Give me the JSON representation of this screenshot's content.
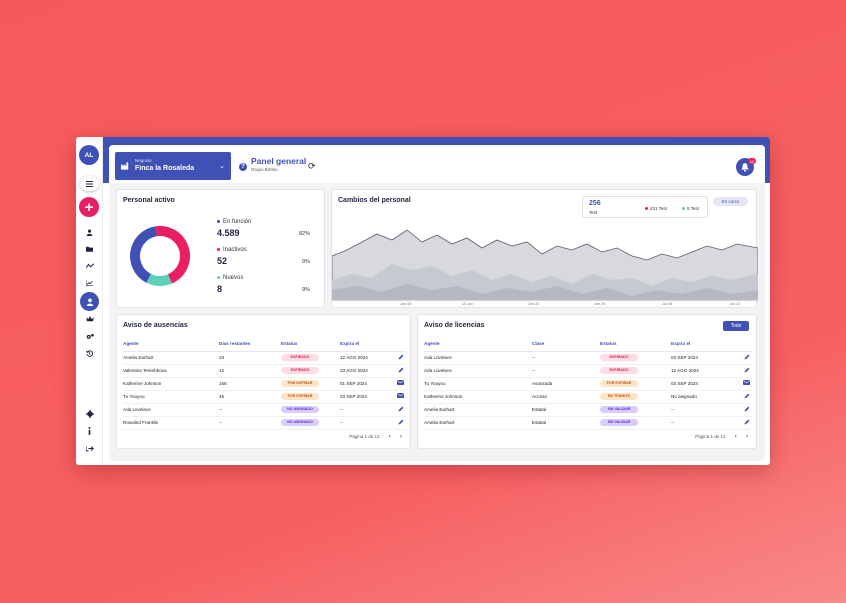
{
  "user": {
    "initials": "AL"
  },
  "header": {
    "negocio_label": "Negocio",
    "negocio_value": "Finca la Rosaleda",
    "panel_title": "Panel general",
    "panel_subtitle": "Grupo Bimbo",
    "notification_count": "12"
  },
  "personal_activo": {
    "title": "Personal activo",
    "items": [
      {
        "label": "En función",
        "value": "4.589",
        "pct": "82%",
        "color": "#3f51b5"
      },
      {
        "label": "Inactivos",
        "value": "52",
        "pct": "9%",
        "color": "#e91e63"
      },
      {
        "label": "Nuevos",
        "value": "8",
        "pct": "9%",
        "color": "#5fd0b8"
      }
    ]
  },
  "cambios": {
    "title": "Cambios del personal",
    "total_value": "256",
    "total_label": "Test",
    "legend1": "231 Test",
    "legend2": "5 Test",
    "legend1_color": "#e91e63",
    "legend2_color": "#5fd0b8",
    "filter_label": "En curso",
    "x_labels": [
      "Jun 08",
      "15 Jun",
      "Jun 22",
      "Jun 29",
      "Jul 06",
      "Jul 13"
    ]
  },
  "ausencias": {
    "title": "Aviso de ausencias",
    "headers": [
      "Agente",
      "Días restantes",
      "Estatus",
      "Expira el"
    ],
    "rows": [
      {
        "agente": "Amelia Earhart",
        "dias": "23",
        "estatus": "EXPIRADO",
        "expira": "12 AGO 2024",
        "action": "edit"
      },
      {
        "agente": "Valentina Tereshkova",
        "dias": "12",
        "estatus": "EXPIRADO",
        "expira": "23 AGO 2024",
        "action": "edit"
      },
      {
        "agente": "Katherine Johnson",
        "dias": "156",
        "estatus": "POR EXPIRAR",
        "expira": "01 SEP 2024",
        "action": "mail"
      },
      {
        "agente": "Tu Youyou",
        "dias": "45",
        "estatus": "POR EXPIRAR",
        "expira": "03 SEP 2024",
        "action": "mail"
      },
      {
        "agente": "Ada Lovelace",
        "dias": "--",
        "estatus": "NO ASIGNADO",
        "expira": "--",
        "action": "edit"
      },
      {
        "agente": "Rosalind Franklin",
        "dias": "--",
        "estatus": "NO ASIGNADO",
        "expira": "--",
        "action": "edit"
      }
    ],
    "pager": "Página 1 de 12"
  },
  "licencias": {
    "title": "Aviso de licencias",
    "todo_label": "Todo",
    "headers": [
      "Agente",
      "Clase",
      "Estatus",
      "Expira el"
    ],
    "rows": [
      {
        "agente": "Ada Lovelace",
        "clase": "--",
        "estatus": "EXPIRADO",
        "expira": "03 SEP 2024",
        "action": "edit"
      },
      {
        "agente": "Ada Lovelace",
        "clase": "--",
        "estatus": "EXPIRADO",
        "expira": "12 AGO 2024",
        "action": "edit"
      },
      {
        "agente": "Tu Youyou",
        "clase": "Avanzada",
        "estatus": "POR EXPIRAR",
        "expira": "03 SEP 2024",
        "action": "mail"
      },
      {
        "agente": "Katherine Johnson",
        "clase": "Acceso",
        "estatus": "EN TRÁMITE",
        "expira": "No asignado",
        "action": "edit"
      },
      {
        "agente": "Amelia Earhart",
        "clase": "Estatal",
        "estatus": "SIN VALIDAR",
        "expira": "--",
        "action": "edit"
      },
      {
        "agente": "Amelia Earhart",
        "clase": "Estatal",
        "estatus": "SIN VALIDAR",
        "expira": "--",
        "action": "edit"
      }
    ],
    "pager": "Página 1 de 12"
  }
}
